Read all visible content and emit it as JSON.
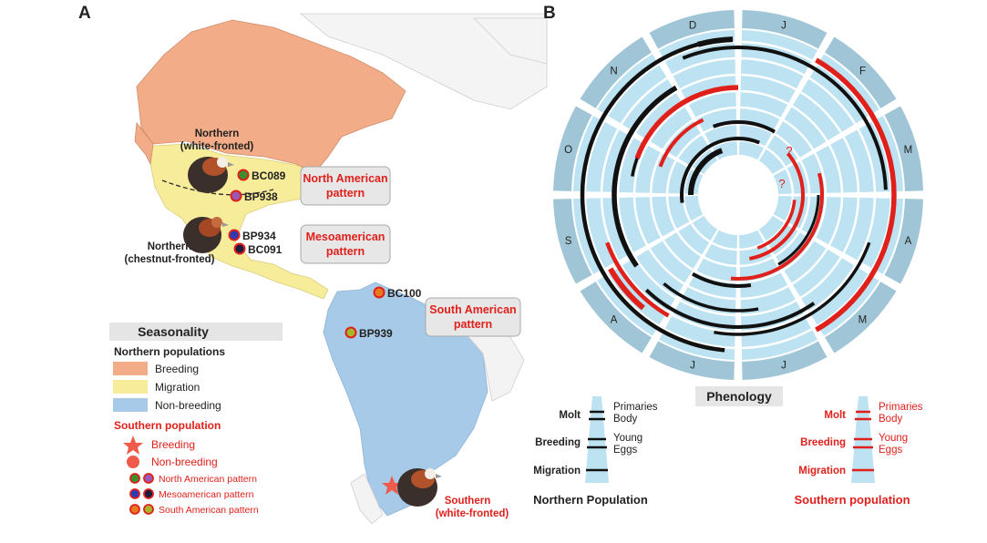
{
  "panels": {
    "a": "A",
    "b": "B"
  },
  "map": {
    "groups": {
      "northern_white": [
        "Northern",
        "(white-fronted)"
      ],
      "northern_chestnut": [
        "Northern",
        "(chestnut-fronted)"
      ],
      "southern": [
        "Southern",
        "(white-fronted)"
      ]
    },
    "samples": [
      "BC089",
      "BP938",
      "BP934",
      "BC091",
      "BC100",
      "BP939"
    ],
    "patterns": {
      "north_american": [
        "North American",
        "pattern"
      ],
      "mesoamerican": [
        "Mesoamerican",
        "pattern"
      ],
      "south_american": [
        "South American",
        "pattern"
      ]
    },
    "colors": {
      "breeding": "#f2ac88",
      "migration": "#f6ec9a",
      "non_breeding": "#a7cae8",
      "ocean": "#ffffff",
      "land_other": "#f5f5f5",
      "accent_red": "#e0201b"
    }
  },
  "legend": {
    "title": "Seasonality",
    "northern_heading": "Northern populations",
    "breeding": "Breeding",
    "migration": "Migration",
    "non_breeding": "Non-breeding",
    "southern_heading": "Southern population",
    "s_breeding": "Breeding",
    "s_non_breeding": "Non-breeding",
    "north_american_pattern": "North American pattern",
    "mesoamerican_pattern": "Mesoamerican pattern",
    "south_american_pattern": "South American pattern"
  },
  "phenology": {
    "title": "Phenology",
    "months": [
      "J",
      "F",
      "M",
      "A",
      "M",
      "J",
      "J",
      "A",
      "S",
      "O",
      "N",
      "D"
    ],
    "question_mark": "?",
    "northern": {
      "molt": "Molt",
      "primaries": "Primaries",
      "body": "Body",
      "breeding": "Breeding",
      "young": "Young",
      "eggs": "Eggs",
      "migration": "Migration",
      "caption": "Northern Population"
    },
    "southern": {
      "molt": "Molt",
      "primaries": "Primaries",
      "body": "Body",
      "breeding": "Breeding",
      "young": "Young",
      "eggs": "Eggs",
      "migration": "Migration",
      "caption": "Southern population"
    },
    "colors": {
      "outer_ring": "#9fc5d6",
      "inner_ring": "#bde3f2",
      "northern": "#111111",
      "southern": "#e0201b"
    }
  }
}
